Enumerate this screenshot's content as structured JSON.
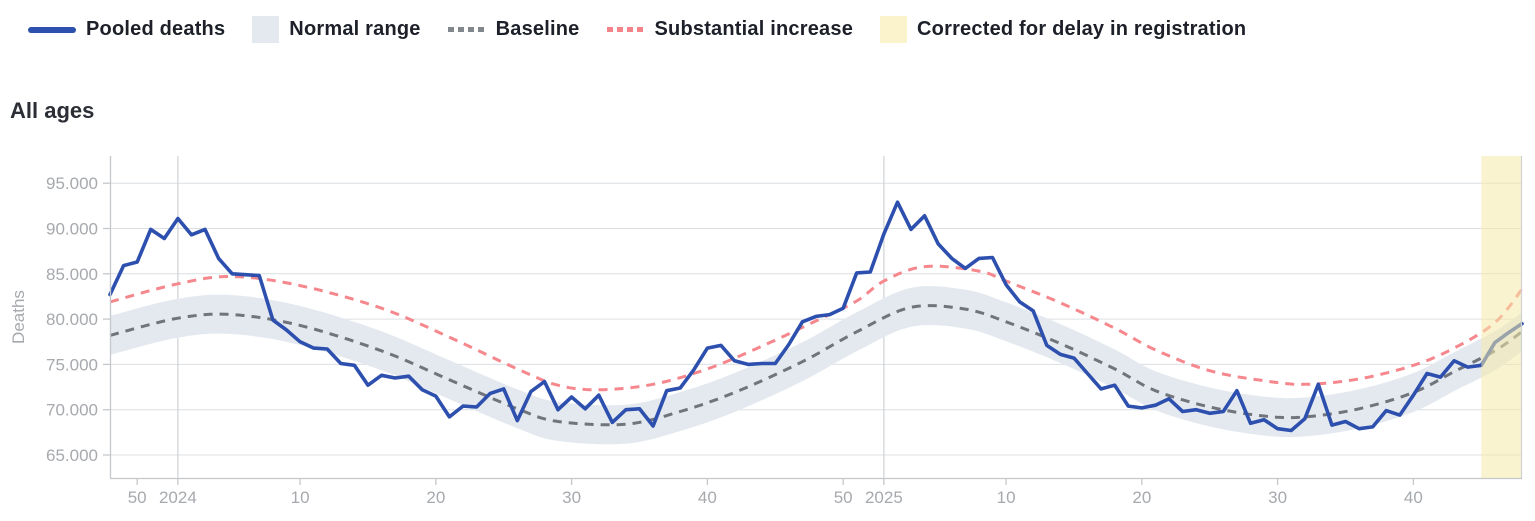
{
  "legend": {
    "items": [
      {
        "id": "pooled-deaths",
        "label": "Pooled deaths",
        "swatch": "line",
        "color": "#2d4fae"
      },
      {
        "id": "normal-range",
        "label": "Normal range",
        "swatch": "square",
        "color": "#e4e9ef"
      },
      {
        "id": "baseline",
        "label": "Baseline",
        "swatch": "dots",
        "color": "#82878d"
      },
      {
        "id": "substantial-increase",
        "label": "Substantial increase",
        "swatch": "dots",
        "color": "#f4838a"
      },
      {
        "id": "corrected-delay",
        "label": "Corrected for delay in registration",
        "swatch": "square",
        "color": "#faf3cb"
      }
    ]
  },
  "section_title": "All ages",
  "chart_data": {
    "type": "line",
    "title": "All ages",
    "xlabel": "",
    "ylabel": "Deaths",
    "ylim": [
      62500,
      98000
    ],
    "grid": true,
    "legend_position": "top",
    "y_ticks": [
      {
        "value": 65000,
        "label": "65.000"
      },
      {
        "value": 70000,
        "label": "70.000"
      },
      {
        "value": 75000,
        "label": "75.000"
      },
      {
        "value": 80000,
        "label": "80.000"
      },
      {
        "value": 85000,
        "label": "85.000"
      },
      {
        "value": 90000,
        "label": "90.000"
      },
      {
        "value": 95000,
        "label": "95.000"
      }
    ],
    "x_ticks": [
      {
        "label": "50",
        "week_index": 2
      },
      {
        "label": "2024",
        "week_index": 5
      },
      {
        "label": "10",
        "week_index": 14
      },
      {
        "label": "20",
        "week_index": 24
      },
      {
        "label": "30",
        "week_index": 34
      },
      {
        "label": "40",
        "week_index": 44
      },
      {
        "label": "50",
        "week_index": 54
      },
      {
        "label": "2025",
        "week_index": 57
      },
      {
        "label": "10",
        "week_index": 66
      },
      {
        "label": "20",
        "week_index": 76
      },
      {
        "label": "30",
        "week_index": 86
      },
      {
        "label": "40",
        "week_index": 96
      }
    ],
    "year_divider_week_indices": [
      5,
      57
    ],
    "series": [
      {
        "name": "Pooled deaths",
        "type": "line",
        "color": "#2d4fae",
        "start_week": "2023-W48",
        "cadence": "weekly",
        "values": [
          82700,
          85900,
          86300,
          89900,
          88900,
          91100,
          89300,
          89900,
          86700,
          85000,
          84900,
          84800,
          79900,
          78800,
          77500,
          76800,
          76700,
          75100,
          74900,
          72700,
          73800,
          73500,
          73700,
          72200,
          71500,
          69200,
          70400,
          70300,
          71800,
          72300,
          68800,
          72000,
          73100,
          70000,
          71400,
          70100,
          71600,
          68600,
          70000,
          70100,
          68200,
          72100,
          72400,
          74400,
          76800,
          77100,
          75400,
          75000,
          75100,
          75100,
          77200,
          79700,
          80300,
          80500,
          81200,
          85100,
          85200,
          89400,
          92900,
          89900,
          91400,
          88300,
          86700,
          85600,
          86700,
          86800,
          83800,
          81900,
          80900,
          77100,
          76100,
          75700,
          74000,
          72300,
          72700,
          70400,
          70200,
          70500,
          71200,
          69800,
          70000,
          69600,
          69800,
          72100,
          68500,
          68900,
          67900,
          67700,
          69000,
          72800,
          68300,
          68700,
          67900,
          68100,
          69900,
          69400,
          71600,
          74000,
          73600,
          75400,
          74700,
          74900,
          77400,
          78500,
          79500
        ]
      },
      {
        "name": "Baseline",
        "type": "smooth-dashed",
        "color": "#6f757b",
        "points": [
          [
            0,
            78200
          ],
          [
            5,
            80100
          ],
          [
            9,
            80500
          ],
          [
            14,
            79300
          ],
          [
            20,
            76500
          ],
          [
            25,
            73300
          ],
          [
            30,
            70100
          ],
          [
            33,
            68700
          ],
          [
            38,
            68400
          ],
          [
            42,
            69800
          ],
          [
            46,
            71900
          ],
          [
            51,
            75300
          ],
          [
            55,
            78600
          ],
          [
            59,
            81300
          ],
          [
            63,
            81100
          ],
          [
            66,
            79700
          ],
          [
            70,
            77300
          ],
          [
            74,
            74500
          ],
          [
            77,
            72100
          ],
          [
            81,
            70300
          ],
          [
            85,
            69300
          ],
          [
            88,
            69200
          ],
          [
            92,
            70100
          ],
          [
            96,
            71900
          ],
          [
            99,
            74200
          ],
          [
            102,
            76500
          ],
          [
            104,
            78600
          ]
        ]
      },
      {
        "name": "Substantial increase",
        "type": "smooth-dashed",
        "color": "#f5878d",
        "points": [
          [
            0,
            81900
          ],
          [
            5,
            83900
          ],
          [
            9,
            84700
          ],
          [
            14,
            83700
          ],
          [
            20,
            81200
          ],
          [
            25,
            78000
          ],
          [
            30,
            74500
          ],
          [
            33,
            72700
          ],
          [
            36,
            72200
          ],
          [
            40,
            72800
          ],
          [
            44,
            74500
          ],
          [
            48,
            77000
          ],
          [
            52,
            79800
          ],
          [
            55,
            82000
          ],
          [
            57,
            84200
          ],
          [
            60,
            85800
          ],
          [
            64,
            85300
          ],
          [
            66,
            84200
          ],
          [
            70,
            81800
          ],
          [
            74,
            79000
          ],
          [
            77,
            76600
          ],
          [
            81,
            74300
          ],
          [
            85,
            73200
          ],
          [
            88,
            72800
          ],
          [
            92,
            73400
          ],
          [
            96,
            74900
          ],
          [
            99,
            76800
          ],
          [
            102,
            79600
          ],
          [
            104,
            83300
          ]
        ]
      },
      {
        "name": "Normal range",
        "type": "band",
        "color": "#e4e9ef",
        "center_series": "Baseline",
        "halfwidth": 2150
      },
      {
        "name": "Corrected for delay in registration",
        "type": "region",
        "color": "#f5e9a8",
        "opacity": 0.55,
        "from_week_index": 101,
        "to_week_index": 104
      }
    ]
  }
}
